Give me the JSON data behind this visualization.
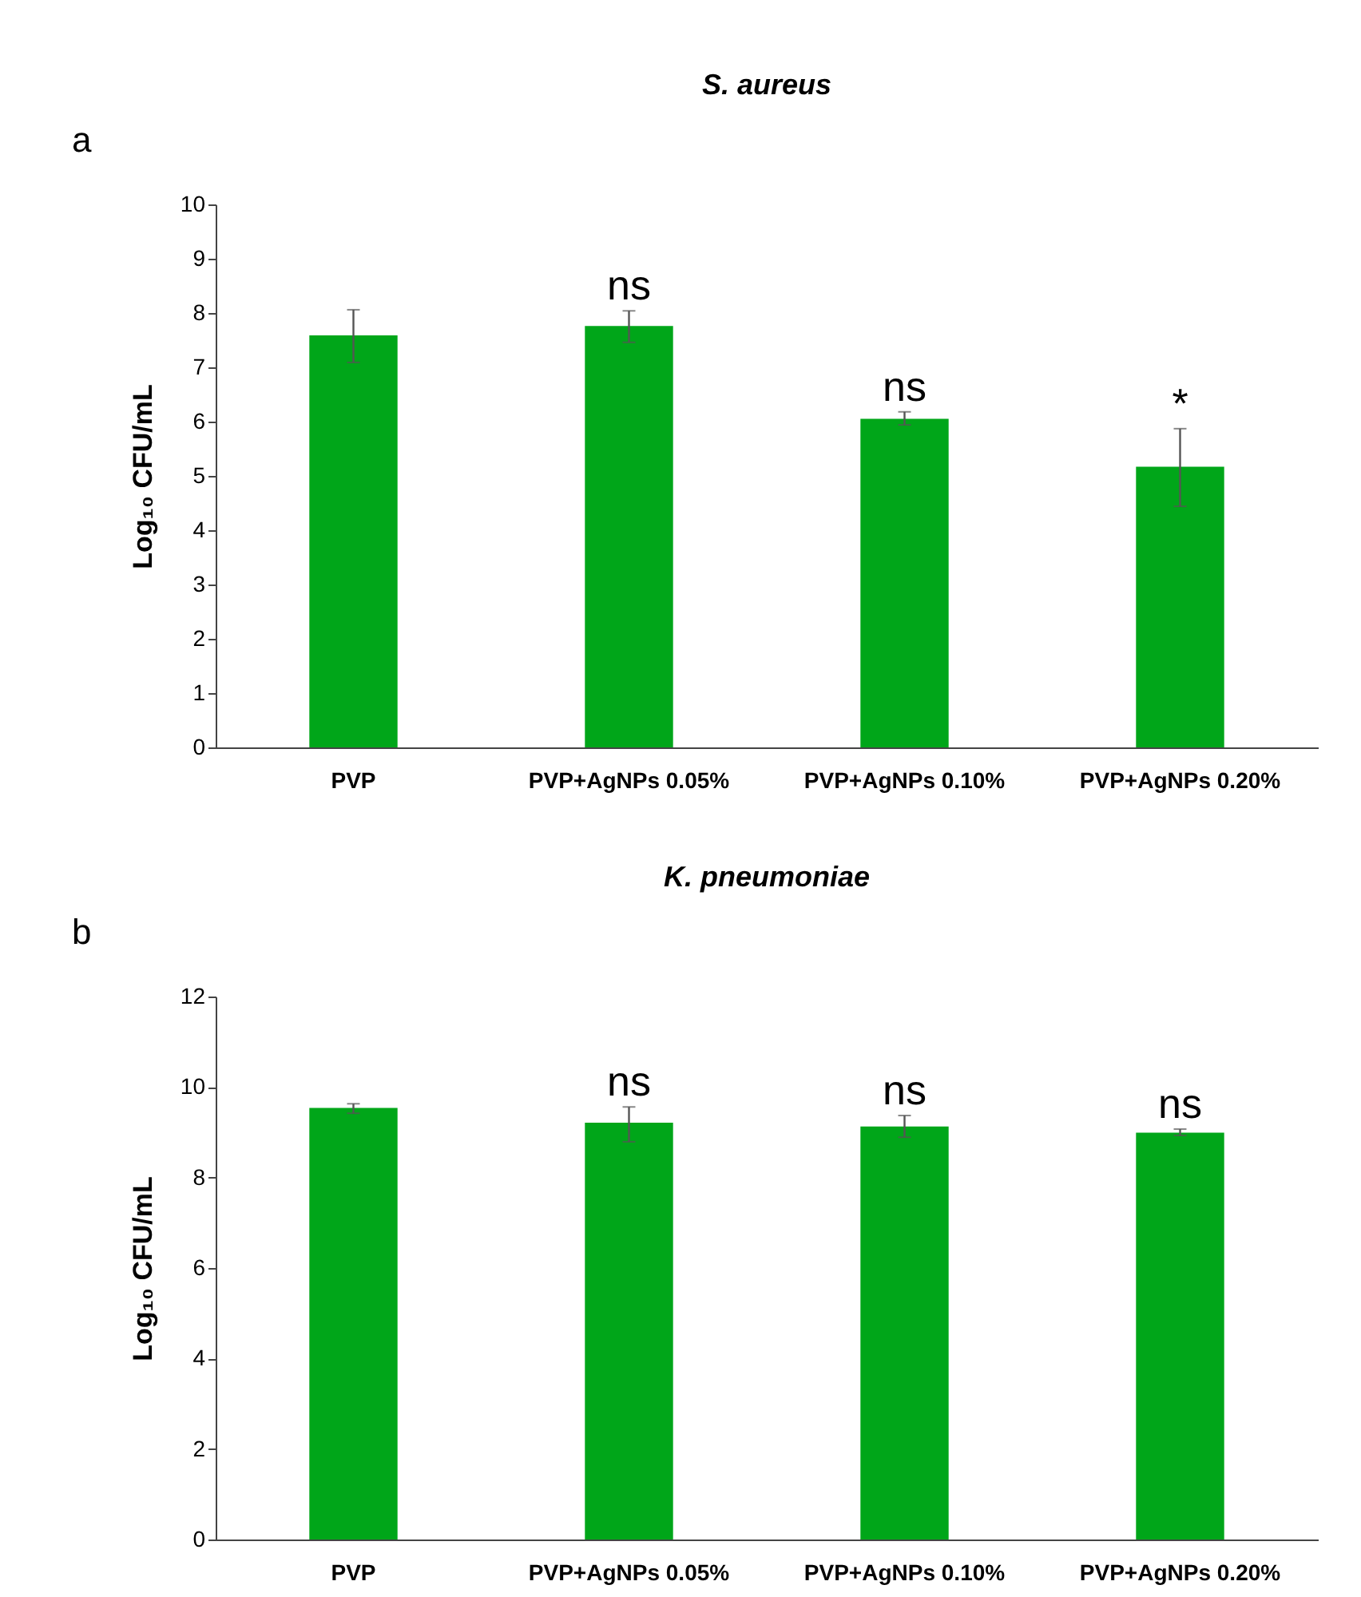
{
  "chart_data": [
    {
      "type": "bar",
      "title": "S. aureus",
      "ylabel": "Log₁₀ CFU/mL",
      "categories": [
        "PVP",
        "PVP+AgNPs 0.05%",
        "PVP+AgNPs 0.10%",
        "PVP+AgNPs 0.20%"
      ],
      "series": [
        {
          "color": "#00a619",
          "values": [
            7.59,
            7.76,
            6.05,
            5.17
          ],
          "errors": [
            [
              7.09,
              8.06
            ],
            [
              7.46,
              8.04
            ],
            [
              5.94,
              6.18
            ],
            [
              4.44,
              5.87
            ]
          ]
        }
      ],
      "ylim": [
        0,
        10
      ],
      "yticks": [
        0,
        1,
        2,
        3,
        4,
        5,
        6,
        7,
        8,
        9,
        10
      ],
      "annotations": [
        "a",
        "ns",
        "ns",
        "*"
      ]
    },
    {
      "type": "bar",
      "title": "K. pneumoniae",
      "ylabel": "Log₁₀ CFU/mL",
      "categories": [
        "PVP",
        "PVP+AgNPs 0.05%",
        "PVP+AgNPs 0.10%",
        "PVP+AgNPs 0.20%"
      ],
      "series": [
        {
          "color": "#00a619",
          "values": [
            9.54,
            9.21,
            9.13,
            8.99
          ],
          "errors": [
            [
              9.42,
              9.63
            ],
            [
              8.79,
              9.56
            ],
            [
              8.89,
              9.37
            ],
            [
              8.93,
              9.07
            ]
          ]
        }
      ],
      "ylim": [
        0,
        12
      ],
      "yticks": [
        0,
        2,
        4,
        6,
        8,
        10,
        12
      ],
      "annotations": [
        "b",
        "ns",
        "ns",
        "ns"
      ]
    }
  ]
}
